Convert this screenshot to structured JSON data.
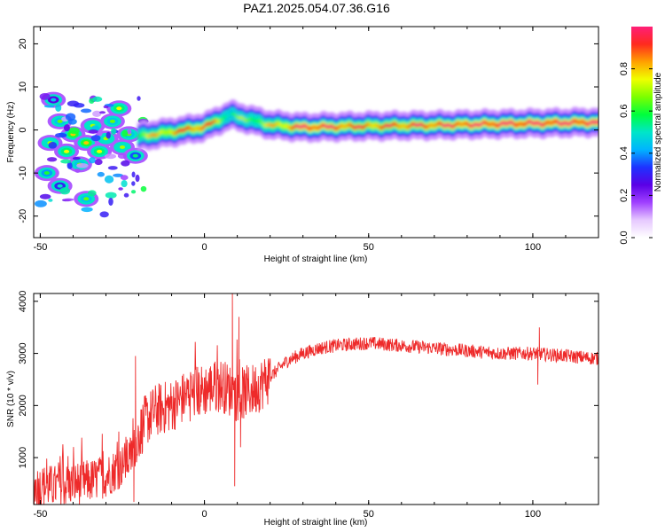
{
  "title": "PAZ1.2025.054.07.36.G16",
  "chart_data": [
    {
      "type": "heatmap",
      "title": "PAZ1.2025.054.07.36.G16",
      "xlabel": "Height of straight line (km)",
      "ylabel": "Frequency (Hz)",
      "xlim": [
        -52,
        120
      ],
      "ylim": [
        -25,
        24
      ],
      "xticks": [
        -50,
        0,
        50,
        100
      ],
      "xtick_labels": [
        "-50",
        "0",
        "50",
        "100"
      ],
      "yticks": [
        -20,
        -10,
        0,
        10,
        20
      ],
      "ytick_labels": [
        "-20",
        "-10",
        "0",
        "10",
        "20"
      ],
      "colorbar": {
        "label": "Normalized spectral amplitude",
        "range": [
          0,
          1
        ],
        "ticks": [
          0,
          0.2,
          0.4,
          0.6,
          0.8
        ],
        "tick_labels": [
          "0.0",
          "0.2",
          "0.4",
          "0.6",
          "0.8"
        ],
        "colors": [
          "#ffffff",
          "#e6c8ff",
          "#a040ff",
          "#5a00e6",
          "#1e32ff",
          "#00b4ff",
          "#00e6c8",
          "#00ff3c",
          "#7cff00",
          "#f0ff00",
          "#ffa000",
          "#ff2a1e",
          "#ff1e78"
        ]
      },
      "ridge": [
        {
          "x": -20,
          "y": -1.5,
          "a": 0.55
        },
        {
          "x": -10,
          "y": -0.5,
          "a": 0.7
        },
        {
          "x": 0,
          "y": 0.7,
          "a": 0.8
        },
        {
          "x": 8,
          "y": 3.5,
          "a": 0.45
        },
        {
          "x": 20,
          "y": 1.2,
          "a": 0.6
        },
        {
          "x": 30,
          "y": 0.6,
          "a": 0.85
        },
        {
          "x": 50,
          "y": 0.9,
          "a": 0.75
        },
        {
          "x": 70,
          "y": 1.1,
          "a": 0.8
        },
        {
          "x": 90,
          "y": 1.4,
          "a": 0.85
        },
        {
          "x": 120,
          "y": 1.8,
          "a": 0.85
        }
      ],
      "blobs": [
        {
          "x": -47,
          "y": -3,
          "a": 0.5
        },
        {
          "x": -44,
          "y": 2,
          "a": 0.45
        },
        {
          "x": -42,
          "y": -5,
          "a": 0.55
        },
        {
          "x": -40,
          "y": -1,
          "a": 0.6
        },
        {
          "x": -38,
          "y": -8,
          "a": 0.45
        },
        {
          "x": -36,
          "y": -3,
          "a": 0.6
        },
        {
          "x": -34,
          "y": 1,
          "a": 0.5
        },
        {
          "x": -32,
          "y": -5,
          "a": 0.55
        },
        {
          "x": -30,
          "y": -2,
          "a": 0.5
        },
        {
          "x": -28,
          "y": 2,
          "a": 0.45
        },
        {
          "x": -26,
          "y": 5,
          "a": 0.55
        },
        {
          "x": -25,
          "y": -4,
          "a": 0.5
        },
        {
          "x": -23,
          "y": -1,
          "a": 0.45
        },
        {
          "x": -36,
          "y": -16,
          "a": 0.45
        },
        {
          "x": -48,
          "y": -10,
          "a": 0.4
        },
        {
          "x": -44,
          "y": -13,
          "a": 0.3
        },
        {
          "x": -21,
          "y": -6,
          "a": 0.35
        },
        {
          "x": -46,
          "y": 7,
          "a": 0.25
        }
      ]
    },
    {
      "type": "line",
      "xlabel": "Height of straight line (km)",
      "ylabel": "SNR (10 * v/v)",
      "xlim": [
        -52,
        120
      ],
      "ylim": [
        100,
        4150
      ],
      "xticks": [
        -50,
        0,
        50,
        100
      ],
      "xtick_labels": [
        "-50",
        "0",
        "50",
        "100"
      ],
      "yticks": [
        1000,
        2000,
        3000,
        4000
      ],
      "ytick_labels": [
        "1000",
        "2000",
        "3000",
        "4000"
      ],
      "color": "#ee2a2a",
      "x": [
        -52,
        -45,
        -40,
        -35,
        -30,
        -25,
        -22,
        -20,
        -18,
        -15,
        -10,
        -5,
        0,
        5,
        10,
        15,
        20,
        25,
        30,
        35,
        40,
        50,
        60,
        70,
        80,
        90,
        100,
        110,
        120
      ],
      "y": [
        450,
        450,
        500,
        550,
        650,
        850,
        1050,
        1450,
        1700,
        1900,
        2000,
        2200,
        2300,
        2400,
        2200,
        2300,
        2550,
        2850,
        3000,
        3100,
        3150,
        3200,
        3150,
        3100,
        3050,
        3000,
        3000,
        2950,
        2900
      ],
      "spikes": [
        {
          "x": -21,
          "y": 2950
        },
        {
          "x": -21.5,
          "y": 150
        },
        {
          "x": 8.5,
          "y": 4150
        },
        {
          "x": 9.2,
          "y": 450
        },
        {
          "x": 10.5,
          "y": 3700
        },
        {
          "x": 11,
          "y": 1200
        },
        {
          "x": 101.5,
          "y": 2400
        },
        {
          "x": 102,
          "y": 3500
        }
      ]
    }
  ]
}
